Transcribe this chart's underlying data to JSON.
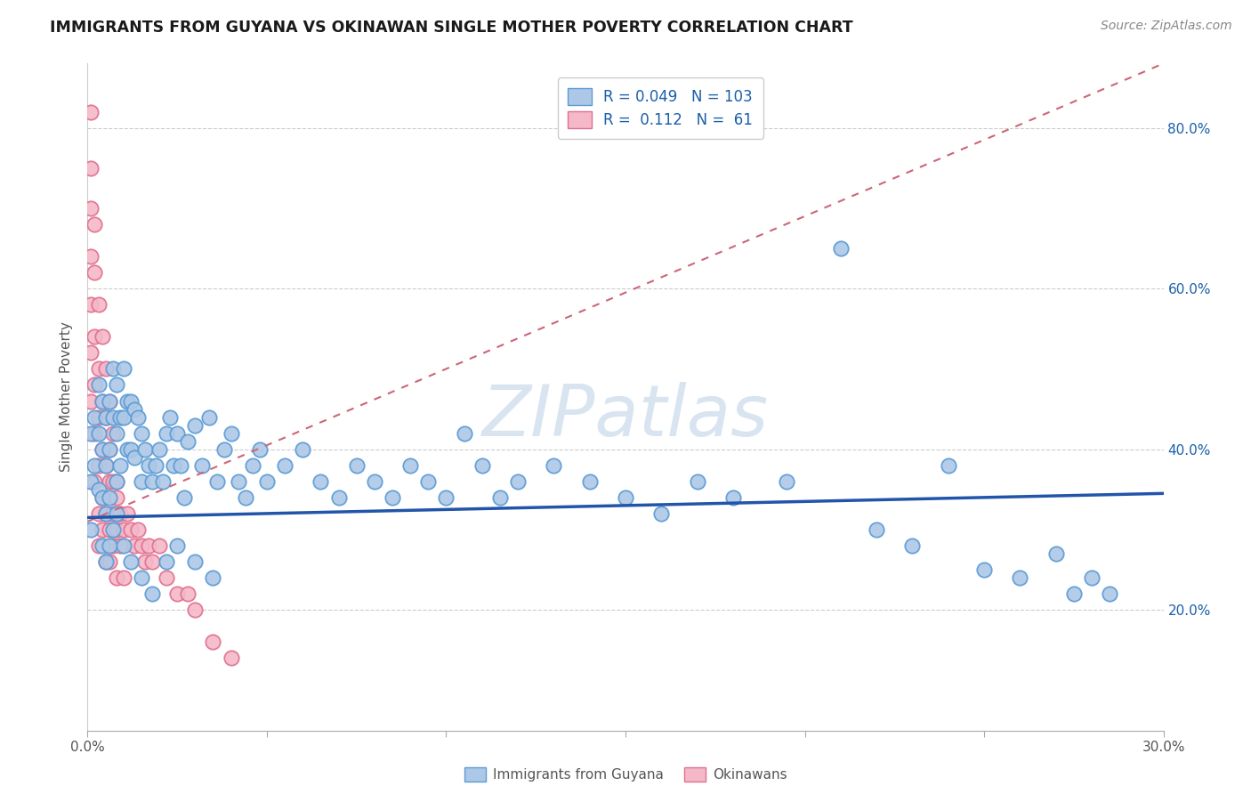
{
  "title": "IMMIGRANTS FROM GUYANA VS OKINAWAN SINGLE MOTHER POVERTY CORRELATION CHART",
  "source": "Source: ZipAtlas.com",
  "ylabel": "Single Mother Poverty",
  "xlim": [
    0.0,
    0.3
  ],
  "ylim": [
    0.05,
    0.88
  ],
  "ytick_labels": [
    "20.0%",
    "40.0%",
    "60.0%",
    "80.0%"
  ],
  "yticks": [
    0.2,
    0.4,
    0.6,
    0.8
  ],
  "blue_color": "#adc8e6",
  "pink_color": "#f4b8c8",
  "blue_edge": "#5b9bd5",
  "pink_edge": "#e07090",
  "trend_blue_color": "#2255aa",
  "trend_pink_color": "#cc6677",
  "legend_R_blue": "0.049",
  "legend_N_blue": "103",
  "legend_R_pink": "0.112",
  "legend_N_pink": "61",
  "legend_color": "#1a5fa8",
  "watermark_color": "#d8e4f0",
  "blue_trend_x": [
    0.0,
    0.3
  ],
  "blue_trend_y": [
    0.315,
    0.345
  ],
  "pink_trend_x": [
    0.0,
    0.3
  ],
  "pink_trend_y": [
    0.31,
    0.88
  ],
  "blue_scatter_x": [
    0.001,
    0.001,
    0.001,
    0.002,
    0.002,
    0.003,
    0.003,
    0.003,
    0.004,
    0.004,
    0.004,
    0.005,
    0.005,
    0.005,
    0.006,
    0.006,
    0.006,
    0.007,
    0.007,
    0.008,
    0.008,
    0.008,
    0.009,
    0.009,
    0.01,
    0.01,
    0.011,
    0.011,
    0.012,
    0.012,
    0.013,
    0.013,
    0.014,
    0.015,
    0.015,
    0.016,
    0.017,
    0.018,
    0.019,
    0.02,
    0.021,
    0.022,
    0.023,
    0.024,
    0.025,
    0.026,
    0.027,
    0.028,
    0.03,
    0.032,
    0.034,
    0.036,
    0.038,
    0.04,
    0.042,
    0.044,
    0.046,
    0.048,
    0.05,
    0.055,
    0.06,
    0.065,
    0.07,
    0.075,
    0.08,
    0.085,
    0.09,
    0.095,
    0.1,
    0.105,
    0.11,
    0.115,
    0.12,
    0.13,
    0.14,
    0.15,
    0.16,
    0.17,
    0.18,
    0.195,
    0.21,
    0.22,
    0.23,
    0.24,
    0.25,
    0.26,
    0.27,
    0.275,
    0.28,
    0.285,
    0.004,
    0.005,
    0.006,
    0.007,
    0.008,
    0.01,
    0.012,
    0.015,
    0.018,
    0.022,
    0.025,
    0.03,
    0.035
  ],
  "blue_scatter_y": [
    0.42,
    0.36,
    0.3,
    0.44,
    0.38,
    0.48,
    0.42,
    0.35,
    0.46,
    0.4,
    0.34,
    0.44,
    0.38,
    0.32,
    0.46,
    0.4,
    0.34,
    0.5,
    0.44,
    0.48,
    0.42,
    0.36,
    0.44,
    0.38,
    0.5,
    0.44,
    0.46,
    0.4,
    0.46,
    0.4,
    0.45,
    0.39,
    0.44,
    0.42,
    0.36,
    0.4,
    0.38,
    0.36,
    0.38,
    0.4,
    0.36,
    0.42,
    0.44,
    0.38,
    0.42,
    0.38,
    0.34,
    0.41,
    0.43,
    0.38,
    0.44,
    0.36,
    0.4,
    0.42,
    0.36,
    0.34,
    0.38,
    0.4,
    0.36,
    0.38,
    0.4,
    0.36,
    0.34,
    0.38,
    0.36,
    0.34,
    0.38,
    0.36,
    0.34,
    0.42,
    0.38,
    0.34,
    0.36,
    0.38,
    0.36,
    0.34,
    0.32,
    0.36,
    0.34,
    0.36,
    0.65,
    0.3,
    0.28,
    0.38,
    0.25,
    0.24,
    0.27,
    0.22,
    0.24,
    0.22,
    0.28,
    0.26,
    0.28,
    0.3,
    0.32,
    0.28,
    0.26,
    0.24,
    0.22,
    0.26,
    0.28,
    0.26,
    0.24
  ],
  "pink_scatter_x": [
    0.001,
    0.001,
    0.001,
    0.001,
    0.001,
    0.002,
    0.002,
    0.002,
    0.002,
    0.003,
    0.003,
    0.003,
    0.003,
    0.003,
    0.004,
    0.004,
    0.004,
    0.004,
    0.005,
    0.005,
    0.005,
    0.005,
    0.006,
    0.006,
    0.006,
    0.006,
    0.007,
    0.007,
    0.007,
    0.008,
    0.008,
    0.008,
    0.009,
    0.009,
    0.01,
    0.01,
    0.011,
    0.012,
    0.013,
    0.014,
    0.015,
    0.016,
    0.017,
    0.018,
    0.02,
    0.022,
    0.025,
    0.028,
    0.03,
    0.035,
    0.04,
    0.001,
    0.001,
    0.002,
    0.002,
    0.003,
    0.004,
    0.005,
    0.006,
    0.007,
    0.008
  ],
  "pink_scatter_y": [
    0.82,
    0.75,
    0.58,
    0.52,
    0.46,
    0.54,
    0.48,
    0.42,
    0.36,
    0.5,
    0.44,
    0.38,
    0.32,
    0.28,
    0.46,
    0.4,
    0.34,
    0.3,
    0.44,
    0.38,
    0.32,
    0.26,
    0.4,
    0.36,
    0.3,
    0.26,
    0.36,
    0.32,
    0.28,
    0.34,
    0.3,
    0.24,
    0.32,
    0.28,
    0.3,
    0.24,
    0.32,
    0.3,
    0.28,
    0.3,
    0.28,
    0.26,
    0.28,
    0.26,
    0.28,
    0.24,
    0.22,
    0.22,
    0.2,
    0.16,
    0.14,
    0.7,
    0.64,
    0.68,
    0.62,
    0.58,
    0.54,
    0.5,
    0.46,
    0.42,
    0.36
  ]
}
